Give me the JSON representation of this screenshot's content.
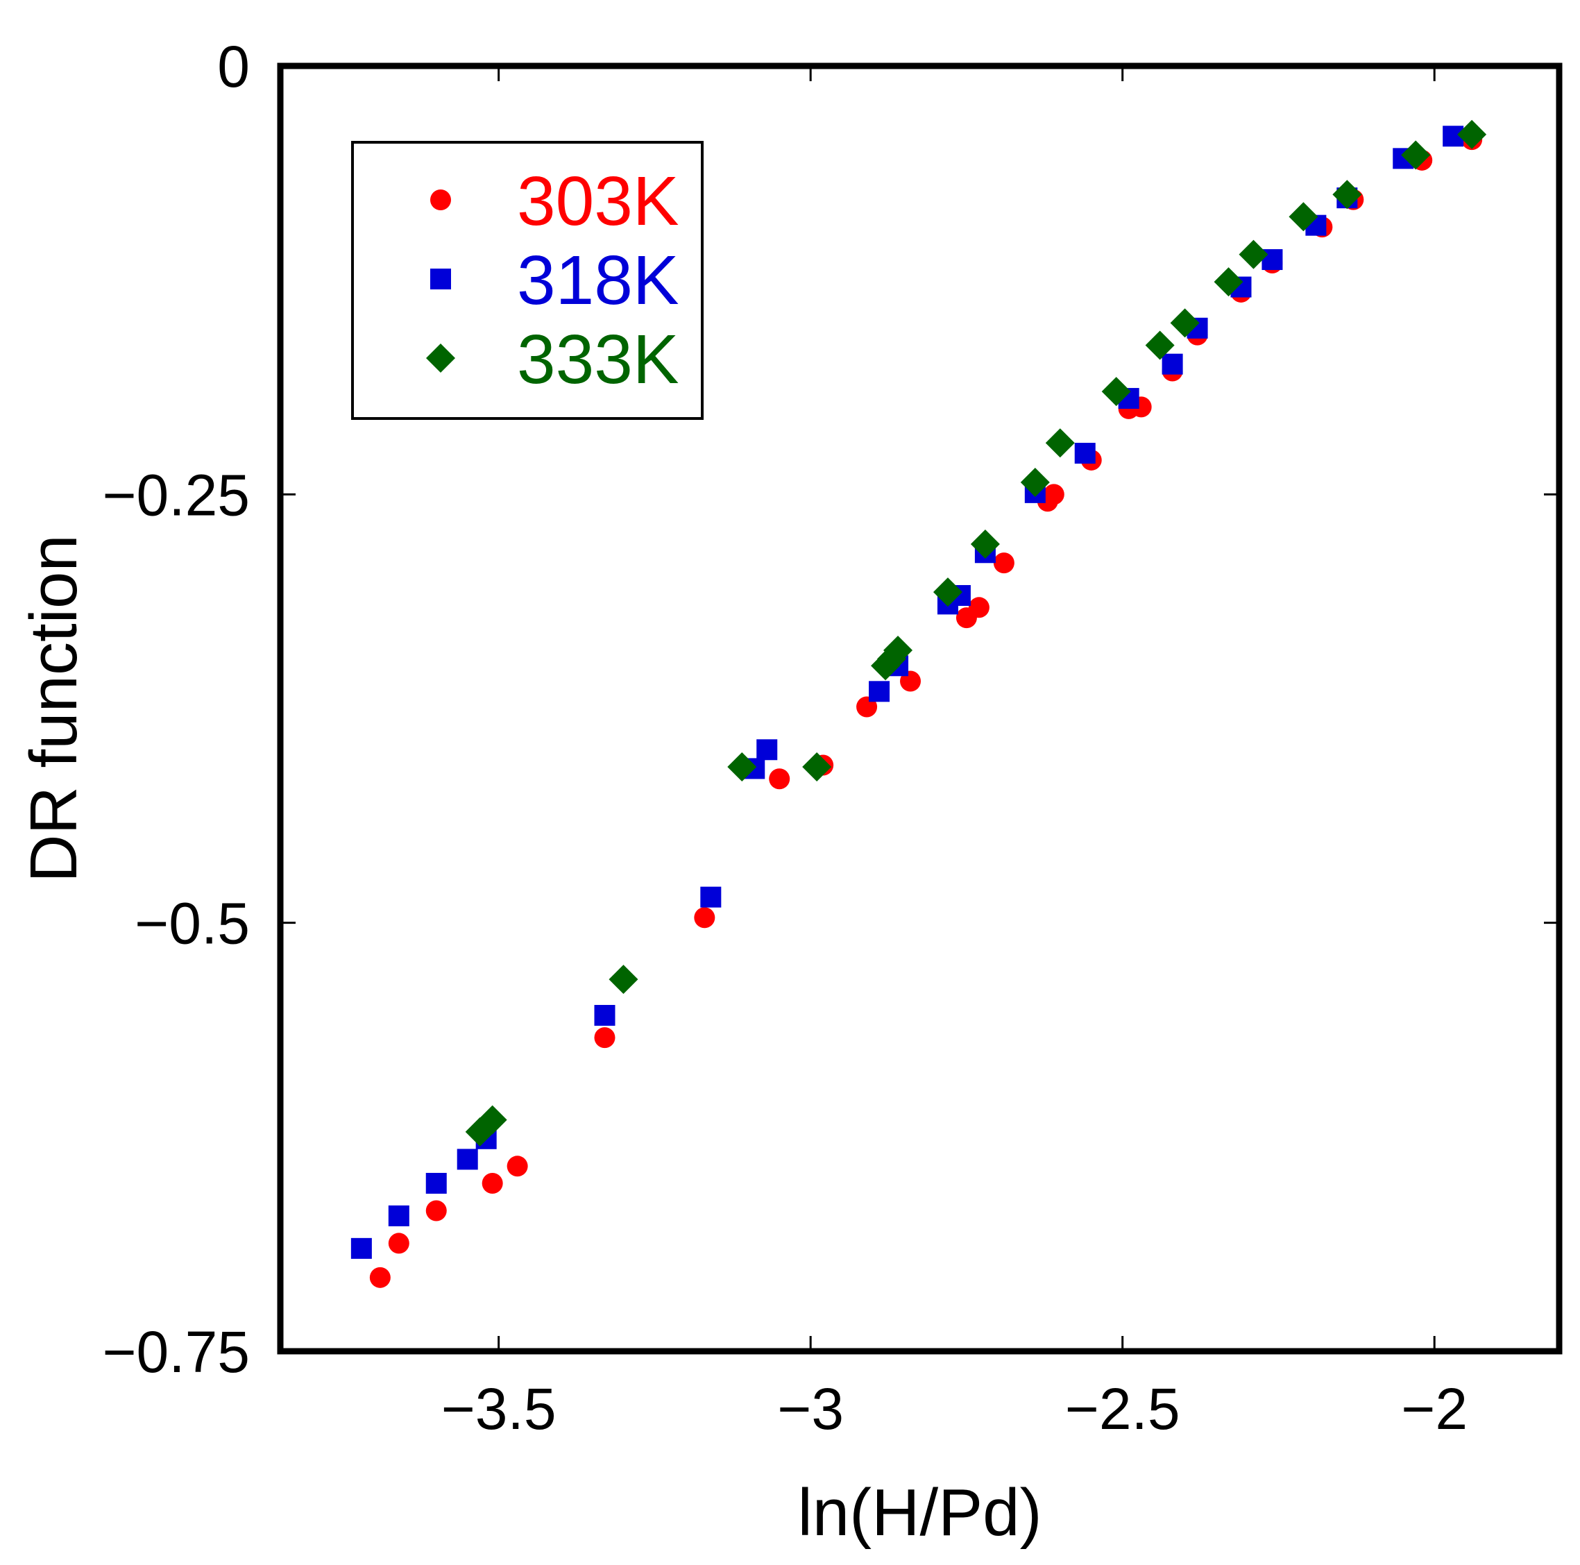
{
  "chart_data": {
    "type": "scatter",
    "title": "",
    "xlabel": "ln(H/Pd)",
    "ylabel": "DR function",
    "xlim": [
      -3.85,
      -1.8
    ],
    "ylim": [
      -0.75,
      0
    ],
    "xticks": [
      -3.5,
      -3,
      -2.5,
      -2
    ],
    "xtick_labels": [
      "−3.5",
      "−3",
      "−2.5",
      "−2"
    ],
    "yticks": [
      0,
      -0.25,
      -0.5,
      -0.75
    ],
    "ytick_labels": [
      "0",
      "−0.25",
      "−0.5",
      "−0.75"
    ],
    "grid": false,
    "legend_position": "top-left",
    "series": [
      {
        "name": "303K",
        "marker": "circle",
        "color": "#ff0000",
        "points": [
          [
            -3.69,
            -0.707
          ],
          [
            -3.66,
            -0.687
          ],
          [
            -3.6,
            -0.668
          ],
          [
            -3.51,
            -0.652
          ],
          [
            -3.47,
            -0.642
          ],
          [
            -3.33,
            -0.567
          ],
          [
            -3.17,
            -0.497
          ],
          [
            -3.05,
            -0.416
          ],
          [
            -2.98,
            -0.408
          ],
          [
            -2.91,
            -0.374
          ],
          [
            -2.84,
            -0.359
          ],
          [
            -2.75,
            -0.322
          ],
          [
            -2.73,
            -0.316
          ],
          [
            -2.69,
            -0.29
          ],
          [
            -2.62,
            -0.254
          ],
          [
            -2.61,
            -0.25
          ],
          [
            -2.55,
            -0.23
          ],
          [
            -2.49,
            -0.2
          ],
          [
            -2.47,
            -0.199
          ],
          [
            -2.42,
            -0.178
          ],
          [
            -2.38,
            -0.157
          ],
          [
            -2.31,
            -0.132
          ],
          [
            -2.26,
            -0.115
          ],
          [
            -2.18,
            -0.094
          ],
          [
            -2.13,
            -0.078
          ],
          [
            -2.02,
            -0.055
          ],
          [
            -1.94,
            -0.043
          ]
        ]
      },
      {
        "name": "318K",
        "marker": "square",
        "color": "#0000d8",
        "points": [
          [
            -3.72,
            -0.69
          ],
          [
            -3.66,
            -0.671
          ],
          [
            -3.6,
            -0.652
          ],
          [
            -3.55,
            -0.638
          ],
          [
            -3.52,
            -0.626
          ],
          [
            -3.33,
            -0.554
          ],
          [
            -3.16,
            -0.485
          ],
          [
            -3.09,
            -0.41
          ],
          [
            -3.07,
            -0.399
          ],
          [
            -2.89,
            -0.365
          ],
          [
            -2.86,
            -0.35
          ],
          [
            -2.78,
            -0.314
          ],
          [
            -2.76,
            -0.309
          ],
          [
            -2.72,
            -0.284
          ],
          [
            -2.64,
            -0.249
          ],
          [
            -2.56,
            -0.226
          ],
          [
            -2.49,
            -0.194
          ],
          [
            -2.42,
            -0.174
          ],
          [
            -2.38,
            -0.153
          ],
          [
            -2.31,
            -0.129
          ],
          [
            -2.26,
            -0.113
          ],
          [
            -2.19,
            -0.093
          ],
          [
            -2.14,
            -0.077
          ],
          [
            -2.05,
            -0.054
          ],
          [
            -1.97,
            -0.041
          ]
        ]
      },
      {
        "name": "333K",
        "marker": "diamond",
        "color": "#006400",
        "points": [
          [
            -3.53,
            -0.622
          ],
          [
            -3.51,
            -0.615
          ],
          [
            -3.3,
            -0.533
          ],
          [
            -3.11,
            -0.409
          ],
          [
            -2.99,
            -0.409
          ],
          [
            -2.88,
            -0.35
          ],
          [
            -2.87,
            -0.346
          ],
          [
            -2.86,
            -0.341
          ],
          [
            -2.78,
            -0.307
          ],
          [
            -2.72,
            -0.279
          ],
          [
            -2.64,
            -0.243
          ],
          [
            -2.6,
            -0.22
          ],
          [
            -2.51,
            -0.19
          ],
          [
            -2.44,
            -0.163
          ],
          [
            -2.4,
            -0.15
          ],
          [
            -2.33,
            -0.126
          ],
          [
            -2.29,
            -0.11
          ],
          [
            -2.21,
            -0.088
          ],
          [
            -2.14,
            -0.075
          ],
          [
            -2.03,
            -0.052
          ],
          [
            -1.94,
            -0.04
          ]
        ]
      }
    ]
  }
}
